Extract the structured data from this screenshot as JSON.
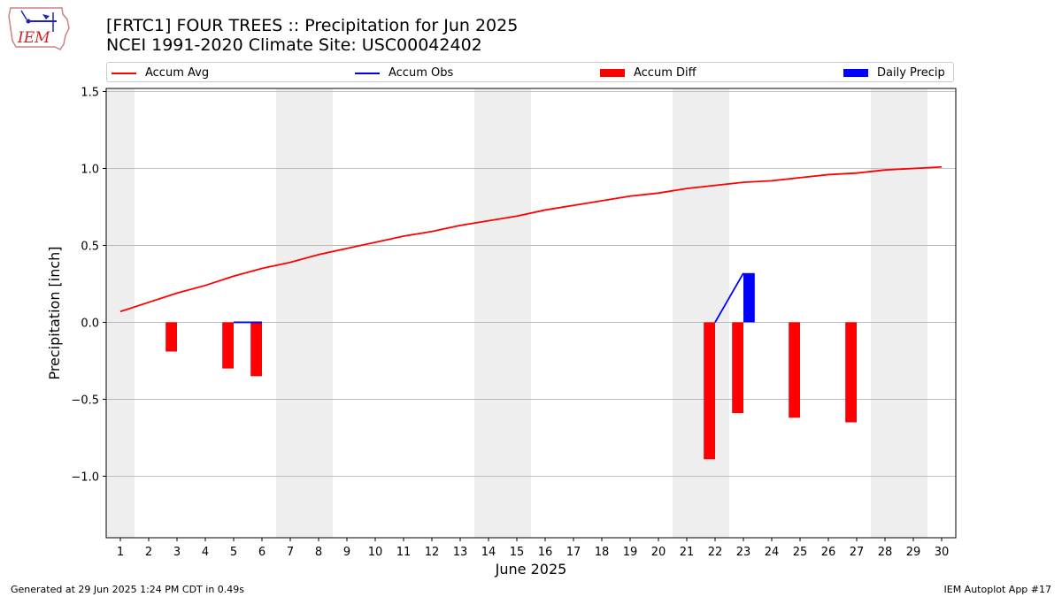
{
  "header": {
    "title_line1": "[FRTC1] FOUR TREES :: Precipitation for Jun 2025",
    "title_line2": "NCEI 1991-2020 Climate Site: USC00042402",
    "logo_text": "IEM"
  },
  "footer": {
    "generated": "Generated at 29 Jun 2025 1:24 PM CDT in 0.49s",
    "app": "IEM Autoplot App #17"
  },
  "colors": {
    "avg": "#ff0000",
    "obs": "#0000ff",
    "diff": "#ff0000",
    "precip": "#0000ff",
    "weekend_shade": "#eeeeee",
    "grid": "#b0b0b0"
  },
  "chart_data": {
    "type": "bar",
    "xlabel": "June 2025",
    "ylabel": "Precipitation [inch]",
    "xlim": [
      0.5,
      30.5
    ],
    "ylim": [
      -1.4,
      1.52
    ],
    "yticks": [
      -1.0,
      -0.5,
      0.0,
      0.5,
      1.0,
      1.5
    ],
    "ytick_labels": [
      "−1.0",
      "−0.5",
      "0.0",
      "0.5",
      "1.0",
      "1.5"
    ],
    "x": [
      1,
      2,
      3,
      4,
      5,
      6,
      7,
      8,
      9,
      10,
      11,
      12,
      13,
      14,
      15,
      16,
      17,
      18,
      19,
      20,
      21,
      22,
      23,
      24,
      25,
      26,
      27,
      28,
      29,
      30
    ],
    "shaded_days": [
      1,
      7,
      8,
      14,
      15,
      21,
      22,
      28,
      29
    ],
    "grid": "horizontal",
    "legend": [
      "Accum Avg",
      "Accum Obs",
      "Accum Diff",
      "Daily Precip"
    ],
    "legend_position": "top",
    "series": [
      {
        "name": "Accum Avg",
        "kind": "line",
        "values": [
          0.07,
          0.13,
          0.19,
          0.24,
          0.3,
          0.35,
          0.39,
          0.44,
          0.48,
          0.52,
          0.56,
          0.59,
          0.63,
          0.66,
          0.69,
          0.73,
          0.76,
          0.79,
          0.82,
          0.84,
          0.87,
          0.89,
          0.91,
          0.92,
          0.94,
          0.96,
          0.97,
          0.99,
          1.0,
          1.01
        ]
      },
      {
        "name": "Accum Obs",
        "kind": "line",
        "points": [
          [
            5,
            0.0
          ],
          [
            6,
            0.0
          ]
        ]
      },
      {
        "name": "Accum Obs",
        "kind": "line",
        "points": [
          [
            22,
            0.0
          ],
          [
            23,
            0.32
          ]
        ]
      },
      {
        "name": "Accum Diff",
        "kind": "bar",
        "points": [
          [
            3,
            -0.19
          ],
          [
            5,
            -0.3
          ],
          [
            6,
            -0.35
          ],
          [
            22,
            -0.89
          ],
          [
            23,
            -0.59
          ],
          [
            25,
            -0.62
          ],
          [
            27,
            -0.65
          ]
        ]
      },
      {
        "name": "Daily Precip",
        "kind": "bar",
        "points": [
          [
            23,
            0.32
          ]
        ]
      }
    ]
  }
}
